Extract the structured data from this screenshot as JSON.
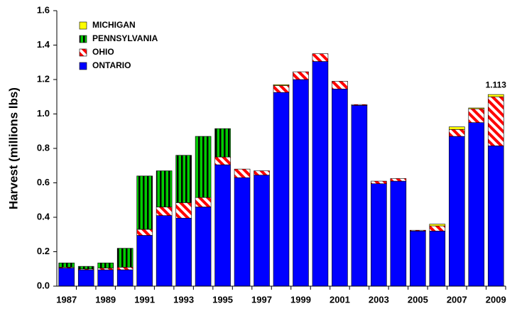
{
  "chart_data": {
    "type": "stacked_bar",
    "y_label": "Harvest (millions lbs)",
    "categories": [
      "1987",
      null,
      "1989",
      null,
      "1991",
      null,
      "1993",
      null,
      "1995",
      null,
      "1997",
      null,
      "1999",
      null,
      "2001",
      null,
      "2003",
      null,
      "2005",
      null,
      "2007",
      null,
      "2009"
    ],
    "series": [
      {
        "name": "ONTARIO",
        "color": "#0000ff",
        "pattern": "solid",
        "values": [
          0.105,
          0.095,
          0.095,
          0.095,
          0.295,
          0.41,
          0.395,
          0.46,
          0.705,
          0.63,
          0.645,
          1.125,
          1.2,
          1.305,
          1.145,
          1.05,
          0.595,
          0.61,
          0.32,
          0.32,
          0.87,
          0.95,
          0.815
        ]
      },
      {
        "name": "OHIO",
        "color": "#ff0000",
        "pattern": "diagonal",
        "values": [
          0.005,
          0.005,
          0.01,
          0.015,
          0.035,
          0.05,
          0.09,
          0.055,
          0.045,
          0.05,
          0.025,
          0.04,
          0.045,
          0.045,
          0.045,
          0.005,
          0.015,
          0.015,
          0.005,
          0.03,
          0.04,
          0.08,
          0.285
        ]
      },
      {
        "name": "PENNSYLVANIA",
        "color": "#00cc00",
        "pattern": "vertical",
        "values": [
          0.025,
          0.015,
          0.03,
          0.11,
          0.31,
          0.21,
          0.275,
          0.355,
          0.165,
          0,
          0,
          0,
          0,
          0,
          0,
          0,
          0,
          0,
          0,
          0,
          0,
          0,
          0
        ]
      },
      {
        "name": "MICHIGAN",
        "color": "#ffff00",
        "pattern": "solid",
        "values": [
          0,
          0,
          0,
          0,
          0,
          0,
          0,
          0,
          0,
          0,
          0,
          0.005,
          0,
          0,
          0,
          0,
          0,
          0,
          0,
          0.01,
          0.015,
          0.005,
          0.013
        ]
      }
    ],
    "annotation": {
      "text": "1.113",
      "category": "2009",
      "value": 1.113
    },
    "ylim": [
      0,
      1.6
    ],
    "yticks": [
      {
        "value": 0,
        "label": "0.0"
      },
      0.2,
      0.4,
      0.6,
      0.8,
      {
        "value": 1,
        "label": "1.0"
      },
      1.2,
      1.4,
      1.6
    ],
    "legend": "upper-left",
    "grid": false
  }
}
